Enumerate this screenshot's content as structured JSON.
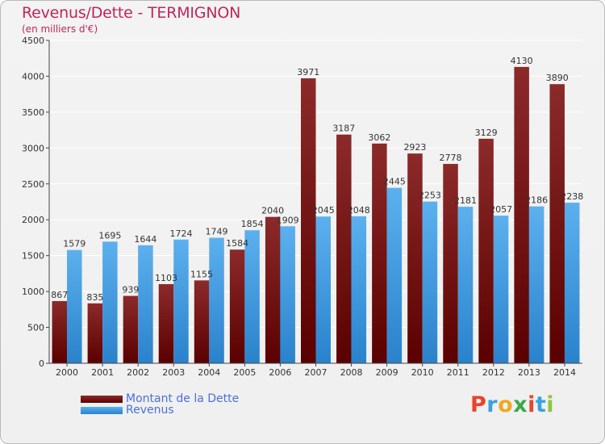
{
  "header": {
    "title": "Revenus/Dette - TERMIGNON",
    "subtitle": "(en milliers d'€)"
  },
  "legend": {
    "items": [
      {
        "label": "Montant de la Dette",
        "color": "#7a1414"
      },
      {
        "label": "Revenus",
        "color": "#4a9fe0"
      }
    ]
  },
  "logo": {
    "letters": [
      "P",
      "r",
      "o",
      "x",
      "i",
      "t",
      "i"
    ],
    "colors": [
      "#e8432d",
      "#3aa1e0",
      "#f0a81e",
      "#3ca84a",
      "#e8432d",
      "#3aa1e0",
      "#8cc63f"
    ]
  },
  "chart_data": {
    "type": "bar",
    "title": "Revenus/Dette - TERMIGNON",
    "ylabel": "(en milliers d'€)",
    "xlabel": "",
    "ylim": [
      0,
      4500
    ],
    "yticks": [
      0,
      500,
      1000,
      1500,
      2000,
      2500,
      3000,
      3500,
      4000,
      4500
    ],
    "grid": true,
    "categories": [
      "2000",
      "2001",
      "2002",
      "2003",
      "2004",
      "2005",
      "2006",
      "2007",
      "2008",
      "2009",
      "2010",
      "2011",
      "2012",
      "2013",
      "2014"
    ],
    "series": [
      {
        "name": "Montant de la Dette",
        "color": "#7a1414",
        "values": [
          867,
          835,
          939,
          1103,
          1155,
          1584,
          2040,
          3971,
          3187,
          3062,
          2923,
          2778,
          3129,
          4130,
          3890
        ],
        "labels": [
          "867",
          "835",
          "939",
          "1103",
          "1155",
          "1584",
          "2040",
          "3971",
          "3187",
          "3062",
          "2923",
          "2778",
          "3129",
          "4130",
          "3890"
        ]
      },
      {
        "name": "Revenus",
        "color": "#4a9fe0",
        "values": [
          1579,
          1695,
          1644,
          1724,
          1749,
          1854,
          1909,
          2045,
          2048,
          2445,
          2253,
          2181,
          2057,
          2186,
          2238
        ],
        "labels": [
          "1579",
          "1695",
          "1644",
          "1724",
          "1749",
          "1854",
          "1909",
          "2045",
          "2048",
          "2445",
          "2253",
          "2181",
          "2057",
          "2186",
          "2238"
        ]
      }
    ]
  }
}
